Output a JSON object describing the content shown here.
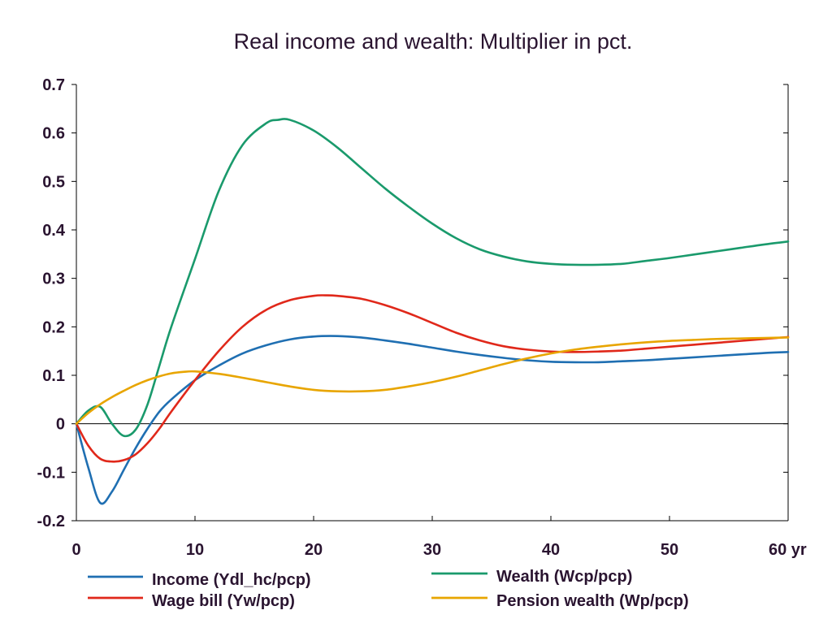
{
  "chart_data": {
    "type": "line",
    "title": "Real income and wealth: Multiplier in pct.",
    "xlabel": "",
    "ylabel": "",
    "xlim": [
      0,
      60
    ],
    "ylim": [
      -0.2,
      0.7
    ],
    "x_ticks": [
      0,
      10,
      20,
      30,
      40,
      50,
      60
    ],
    "x_tick_labels": [
      "0",
      "10",
      "20",
      "30",
      "40",
      "50",
      "60 yr"
    ],
    "y_ticks": [
      -0.2,
      -0.1,
      0,
      0.1,
      0.2,
      0.3,
      0.4,
      0.5,
      0.6,
      0.7
    ],
    "y_tick_labels": [
      "-0.2",
      "-0.1",
      "0",
      "0.1",
      "0.2",
      "0.3",
      "0.4",
      "0.5",
      "0.6",
      "0.7"
    ],
    "grid": false,
    "zero_line": true,
    "legend_position": "bottom",
    "series": [
      {
        "name": "Income (Ydl_hc/pcp)",
        "color": "#1f6fb2",
        "x": [
          0,
          1,
          2,
          3,
          4,
          5,
          6,
          7,
          8,
          10,
          12,
          14,
          16,
          18,
          20,
          22,
          24,
          26,
          28,
          30,
          32,
          34,
          36,
          38,
          40,
          42,
          44,
          46,
          48,
          50,
          52,
          54,
          56,
          58,
          60
        ],
        "y": [
          0,
          -0.09,
          -0.163,
          -0.14,
          -0.095,
          -0.05,
          -0.01,
          0.025,
          0.05,
          0.09,
          0.12,
          0.145,
          0.162,
          0.174,
          0.18,
          0.181,
          0.178,
          0.172,
          0.165,
          0.157,
          0.149,
          0.142,
          0.136,
          0.131,
          0.128,
          0.127,
          0.127,
          0.129,
          0.131,
          0.134,
          0.137,
          0.14,
          0.143,
          0.146,
          0.148
        ]
      },
      {
        "name": "Wage bill (Yw/pcp)",
        "color": "#e0281a",
        "x": [
          0,
          1,
          2,
          3,
          4,
          5,
          6,
          7,
          8,
          10,
          12,
          14,
          16,
          18,
          20,
          21,
          22,
          24,
          26,
          28,
          30,
          32,
          34,
          36,
          38,
          40,
          42,
          44,
          46,
          48,
          50,
          52,
          54,
          56,
          58,
          60
        ],
        "y": [
          0,
          -0.045,
          -0.072,
          -0.078,
          -0.075,
          -0.063,
          -0.04,
          -0.01,
          0.025,
          0.09,
          0.15,
          0.2,
          0.235,
          0.255,
          0.264,
          0.265,
          0.264,
          0.258,
          0.245,
          0.228,
          0.208,
          0.188,
          0.172,
          0.16,
          0.153,
          0.149,
          0.148,
          0.149,
          0.151,
          0.155,
          0.159,
          0.163,
          0.167,
          0.171,
          0.175,
          0.179
        ]
      },
      {
        "name": "Wealth (Wcp/pcp)",
        "color": "#1a9a6c",
        "x": [
          0,
          1,
          2,
          3,
          4,
          5,
          6,
          7,
          8,
          10,
          12,
          14,
          16,
          17,
          18,
          20,
          22,
          24,
          26,
          28,
          30,
          32,
          34,
          36,
          38,
          40,
          42,
          44,
          46,
          48,
          50,
          52,
          54,
          56,
          58,
          60
        ],
        "y": [
          0,
          0.027,
          0.035,
          0.0,
          -0.025,
          -0.012,
          0.04,
          0.12,
          0.2,
          0.34,
          0.48,
          0.575,
          0.62,
          0.627,
          0.627,
          0.605,
          0.57,
          0.528,
          0.486,
          0.448,
          0.413,
          0.383,
          0.36,
          0.345,
          0.335,
          0.33,
          0.328,
          0.328,
          0.33,
          0.336,
          0.342,
          0.349,
          0.356,
          0.363,
          0.37,
          0.376
        ]
      },
      {
        "name": "Pension wealth (Wp/pcp)",
        "color": "#e8a500",
        "x": [
          0,
          1,
          2,
          3,
          4,
          5,
          6,
          7,
          8,
          9,
          10,
          12,
          14,
          16,
          18,
          20,
          22,
          24,
          26,
          28,
          30,
          32,
          34,
          36,
          38,
          40,
          42,
          44,
          46,
          48,
          50,
          52,
          54,
          56,
          58,
          60
        ],
        "y": [
          0,
          0.022,
          0.04,
          0.055,
          0.068,
          0.08,
          0.09,
          0.098,
          0.104,
          0.107,
          0.108,
          0.103,
          0.095,
          0.086,
          0.077,
          0.07,
          0.067,
          0.067,
          0.07,
          0.077,
          0.086,
          0.097,
          0.11,
          0.123,
          0.135,
          0.145,
          0.153,
          0.159,
          0.164,
          0.168,
          0.171,
          0.173,
          0.175,
          0.176,
          0.177,
          0.178
        ]
      }
    ]
  }
}
